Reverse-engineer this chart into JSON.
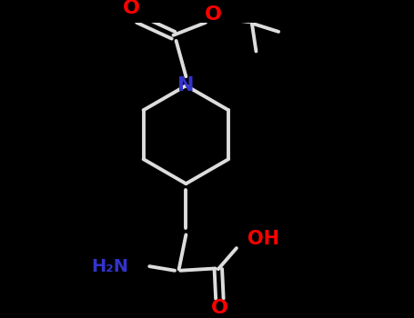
{
  "background_color": "#000000",
  "bond_color": "#dddddd",
  "atom_colors": {
    "N": "#3333cc",
    "O": "#ff0000",
    "C": "#dddddd",
    "H": "#dddddd"
  },
  "figsize": [
    4.55,
    3.5
  ],
  "dpi": 100,
  "bond_lw": 2.8,
  "font_size_atom": 15,
  "font_size_small": 13
}
